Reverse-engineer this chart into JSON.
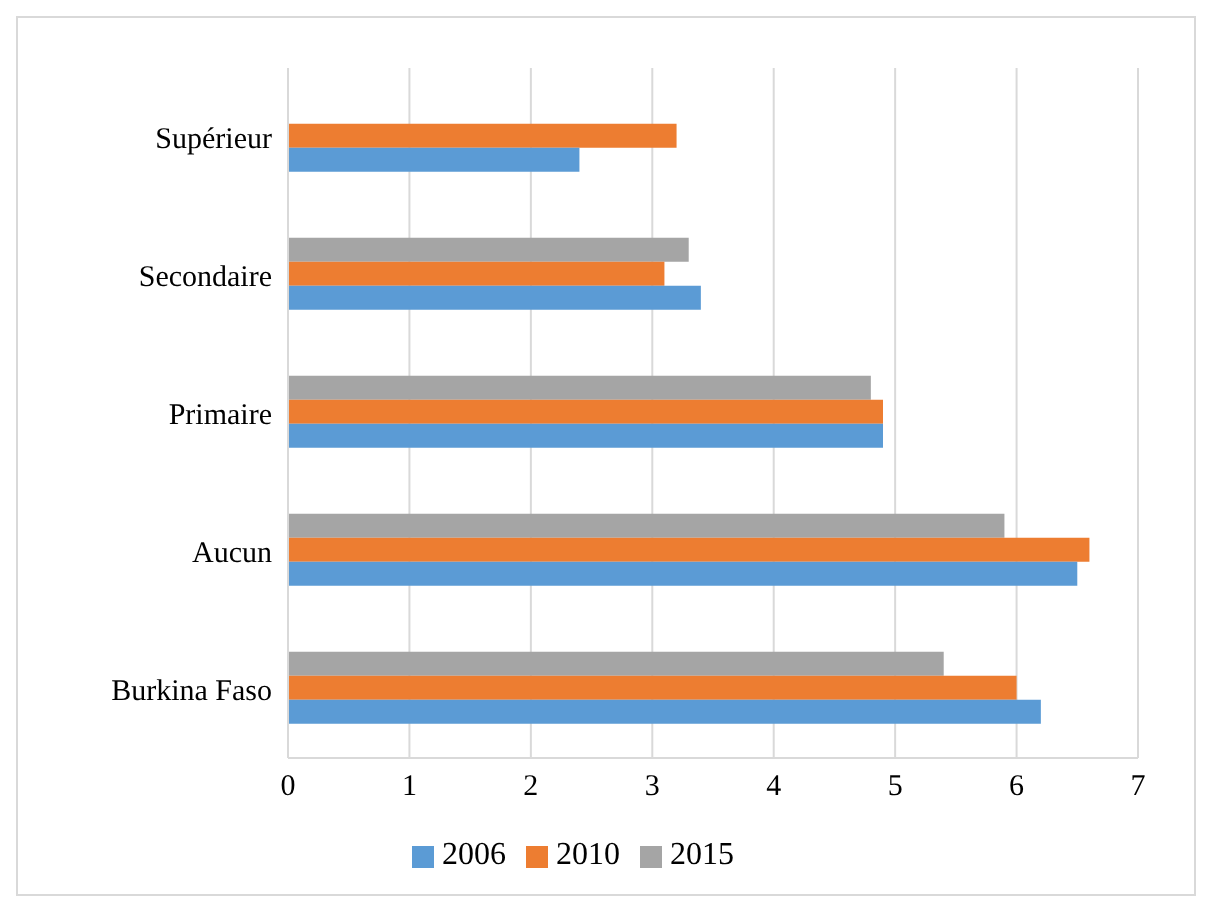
{
  "chart_data": {
    "type": "bar",
    "orientation": "horizontal",
    "categories": [
      "Supérieur",
      "Secondaire",
      "Primaire",
      "Aucun",
      "Burkina Faso"
    ],
    "series": [
      {
        "name": "2015",
        "color": "#a5a5a5",
        "values": [
          null,
          3.3,
          4.8,
          5.9,
          5.4
        ]
      },
      {
        "name": "2010",
        "color": "#ed7d31",
        "values": [
          3.2,
          3.1,
          4.9,
          6.6,
          6.0
        ]
      },
      {
        "name": "2006",
        "color": "#5b9bd5",
        "values": [
          2.4,
          3.4,
          4.9,
          6.5,
          6.2
        ]
      }
    ],
    "xlim": [
      0,
      7
    ],
    "xticks": [
      0,
      1,
      2,
      3,
      4,
      5,
      6,
      7
    ],
    "grid": "x",
    "legend": "bottom"
  }
}
